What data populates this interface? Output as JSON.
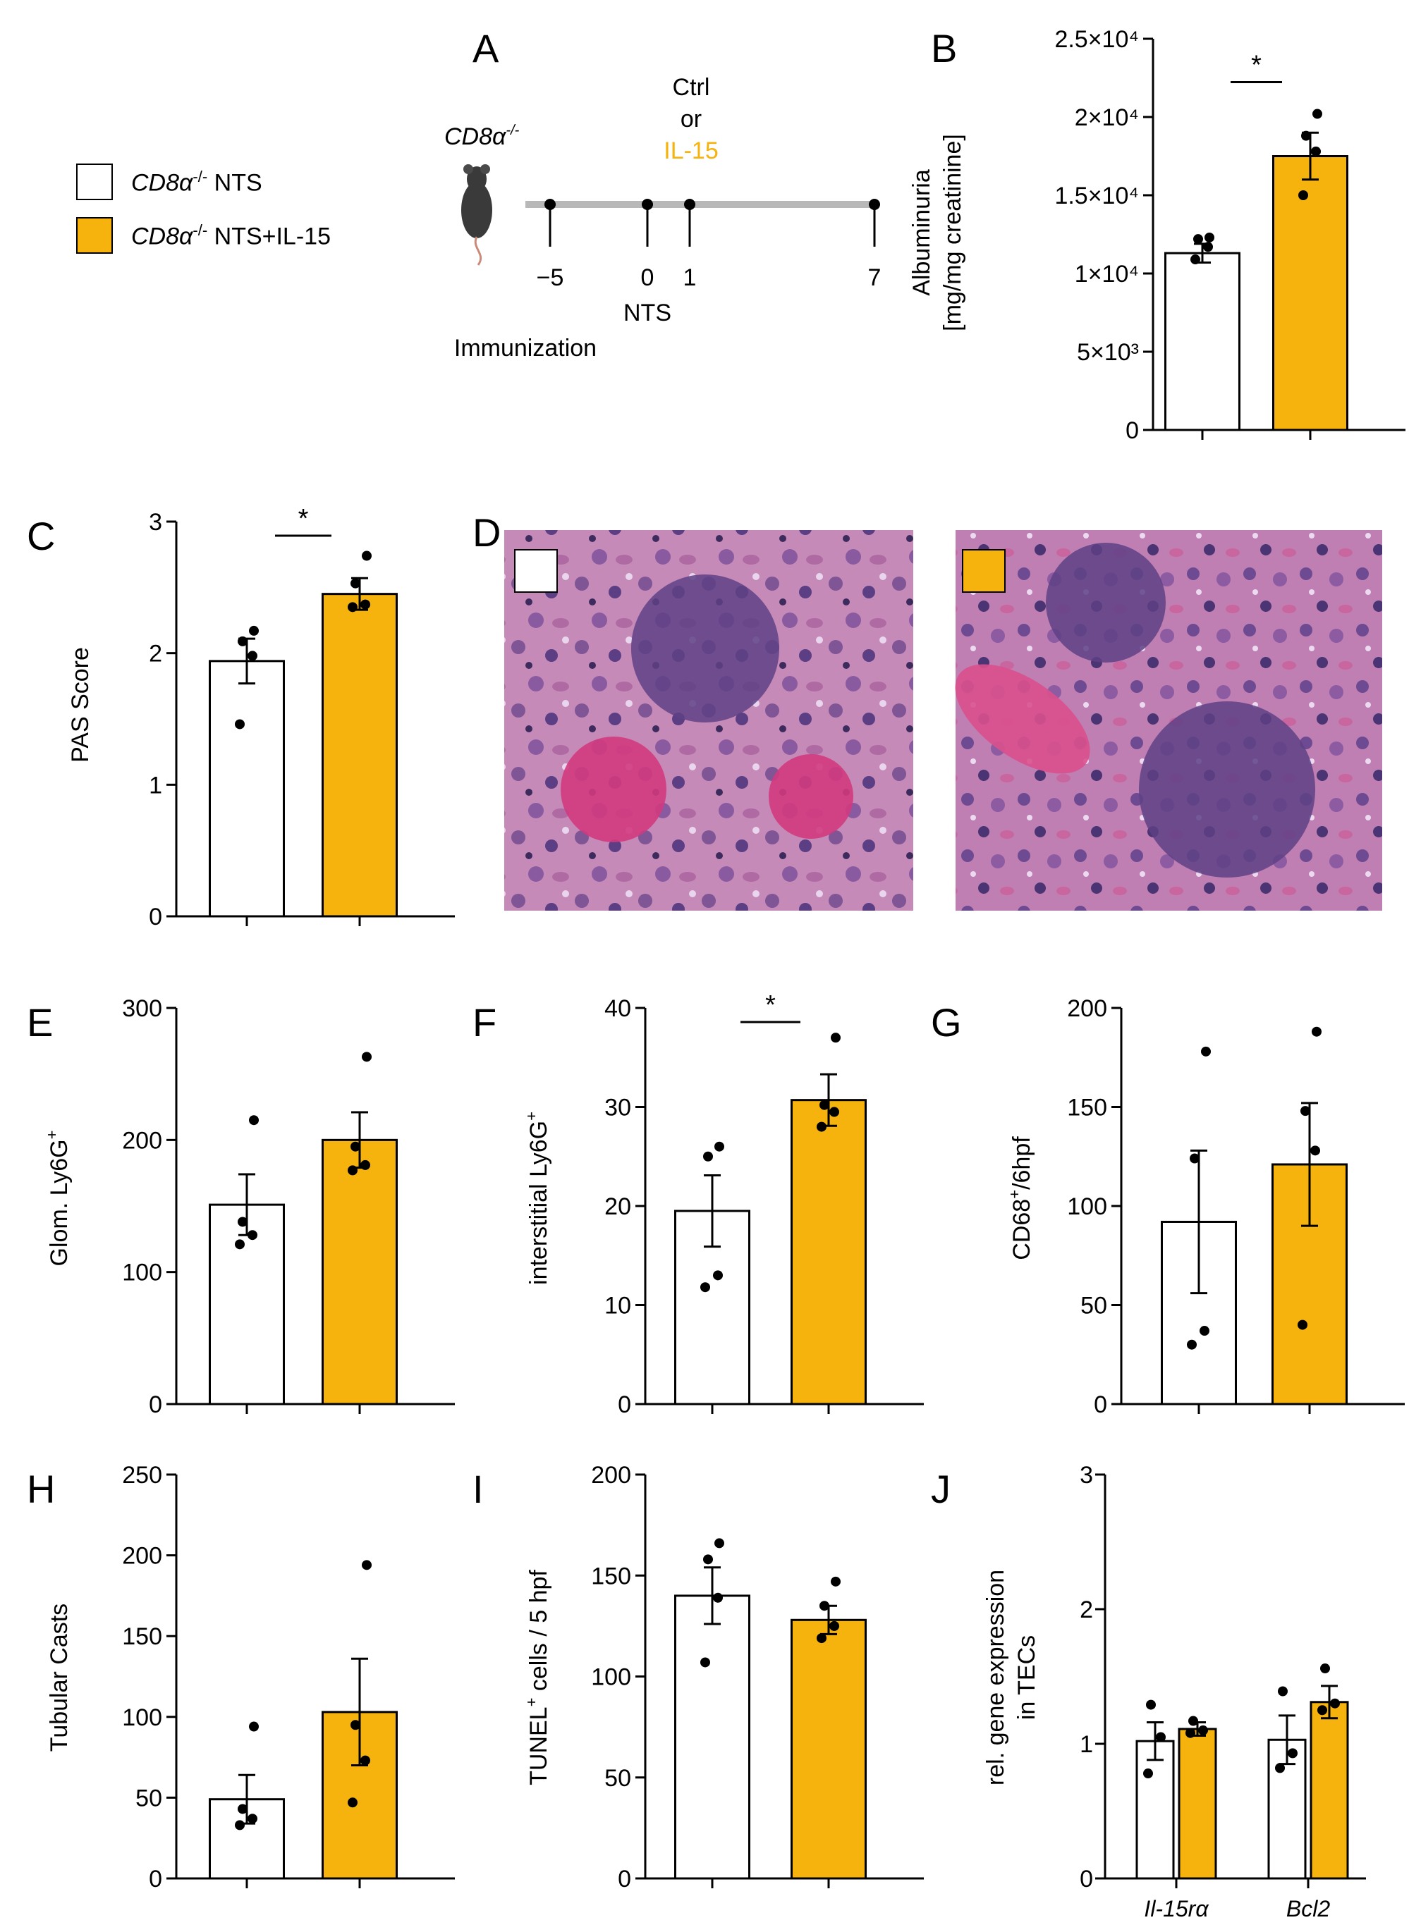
{
  "legend": {
    "items": [
      {
        "label_italic": "CD8α",
        "label_sup": "-/-",
        "label_rest": " NTS",
        "color": "#ffffff"
      },
      {
        "label_italic": "CD8α",
        "label_sup": "-/-",
        "label_rest": " NTS+IL-15",
        "color": "#f6b30d"
      }
    ]
  },
  "timeline": {
    "panel_letter": "A",
    "mouse_label": "CD8α",
    "mouse_label_sup": "-/-",
    "treatment_lines": [
      "Ctrl",
      "or",
      "IL-15"
    ],
    "treatment_highlight_color": "#f6b30d",
    "ticks": [
      "−5",
      "0",
      "1",
      "7"
    ],
    "under_labels": [
      "NTS",
      "Immunization"
    ]
  },
  "histology": {
    "panel_letter": "D",
    "images": [
      "ctrl-section",
      "il15-section"
    ]
  },
  "colors": {
    "ctrl": "#ffffff",
    "il15": "#f6b30d",
    "axis": "#000000"
  },
  "chart_data": [
    {
      "id": "B",
      "type": "bar",
      "panel_letter": "B",
      "categories": [
        "CD8α-/- NTS",
        "CD8α-/- NTS+IL-15"
      ],
      "values": [
        11300,
        17500
      ],
      "errors": [
        600,
        1500
      ],
      "points": [
        [
          10900,
          11700,
          12200,
          12300
        ],
        [
          15000,
          17800,
          18800,
          20200
        ]
      ],
      "ylabel_lines": [
        "Albuminuria",
        "[mg/mg creatinine]"
      ],
      "ylim": [
        0,
        25000
      ],
      "yticks": [
        "0",
        "5×10³",
        "1×10⁴",
        "1.5×10⁴",
        "2×10⁴",
        "2.5×10⁴"
      ],
      "significance": "*"
    },
    {
      "id": "C",
      "type": "bar",
      "panel_letter": "C",
      "categories": [
        "CD8α-/- NTS",
        "CD8α-/- NTS+IL-15"
      ],
      "values": [
        1.94,
        2.45
      ],
      "errors": [
        0.17,
        0.12
      ],
      "points": [
        [
          1.46,
          1.98,
          2.09,
          2.17
        ],
        [
          2.35,
          2.37,
          2.53,
          2.74
        ]
      ],
      "ylabel_lines": [
        "PAS Score"
      ],
      "ylim": [
        0,
        3
      ],
      "yticks": [
        "0",
        "1",
        "2",
        "3"
      ],
      "significance": "*"
    },
    {
      "id": "E",
      "type": "bar",
      "panel_letter": "E",
      "categories": [
        "CD8α-/- NTS",
        "CD8α-/- NTS+IL-15"
      ],
      "values": [
        151,
        200
      ],
      "errors": [
        23,
        21
      ],
      "points": [
        [
          121,
          128,
          138,
          215
        ],
        [
          177,
          181,
          195,
          263
        ]
      ],
      "ylabel_lines": [
        "Glom. Ly6G"
      ],
      "ylabel_sup": "+",
      "ylim": [
        0,
        300
      ],
      "yticks": [
        "0",
        "100",
        "200",
        "300"
      ],
      "significance": ""
    },
    {
      "id": "F",
      "type": "bar",
      "panel_letter": "F",
      "categories": [
        "CD8α-/- NTS",
        "CD8α-/- NTS+IL-15"
      ],
      "values": [
        19.5,
        30.7
      ],
      "errors": [
        3.6,
        2.6
      ],
      "points": [
        [
          11.8,
          13.0,
          25.0,
          26.0
        ],
        [
          28.0,
          29.5,
          30.2,
          37.0
        ]
      ],
      "ylabel_lines": [
        "interstitial Ly6G"
      ],
      "ylabel_sup": "+",
      "ylim": [
        0,
        40
      ],
      "yticks": [
        "0",
        "10",
        "20",
        "30",
        "40"
      ],
      "significance": "*"
    },
    {
      "id": "G",
      "type": "bar",
      "panel_letter": "G",
      "categories": [
        "CD8α-/- NTS",
        "CD8α-/- NTS+IL-15"
      ],
      "values": [
        92,
        121
      ],
      "errors": [
        36,
        31
      ],
      "points": [
        [
          30,
          37,
          124,
          178
        ],
        [
          40,
          128,
          148,
          188
        ]
      ],
      "ylabel_lines": [
        "CD68",
        "/6hpf"
      ],
      "ylabel_sup": "+",
      "ylim": [
        0,
        200
      ],
      "yticks": [
        "0",
        "50",
        "100",
        "150",
        "200"
      ],
      "significance": ""
    },
    {
      "id": "H",
      "type": "bar",
      "panel_letter": "H",
      "categories": [
        "CD8α-/- NTS",
        "CD8α-/- NTS+IL-15"
      ],
      "values": [
        49,
        103
      ],
      "errors": [
        15,
        33
      ],
      "points": [
        [
          33,
          37,
          43,
          94
        ],
        [
          47,
          73,
          95,
          194
        ]
      ],
      "ylabel_lines": [
        "Tubular Casts"
      ],
      "ylim": [
        0,
        250
      ],
      "yticks": [
        "0",
        "50",
        "100",
        "150",
        "200",
        "250"
      ],
      "significance": ""
    },
    {
      "id": "I",
      "type": "bar",
      "panel_letter": "I",
      "categories": [
        "CD8α-/- NTS",
        "CD8α-/- NTS+IL-15"
      ],
      "values": [
        140,
        128
      ],
      "errors": [
        14,
        7
      ],
      "points": [
        [
          107,
          139,
          158,
          166
        ],
        [
          119,
          125,
          135,
          147
        ]
      ],
      "ylabel_lines": [
        "TUNEL",
        " cells / 5 hpf"
      ],
      "ylabel_sup": "+",
      "ylim": [
        0,
        200
      ],
      "yticks": [
        "0",
        "50",
        "100",
        "150",
        "200"
      ],
      "significance": ""
    },
    {
      "id": "J",
      "type": "bar",
      "panel_letter": "J",
      "categories": [
        "Il-15rα",
        "Bcl2"
      ],
      "series": [
        {
          "values": [
            1.02,
            1.03
          ],
          "errors": [
            0.14,
            0.18
          ],
          "points": [
            [
              0.78,
              1.05,
              1.29
            ],
            [
              0.82,
              0.93,
              1.39
            ]
          ]
        },
        {
          "values": [
            1.11,
            1.31
          ],
          "errors": [
            0.05,
            0.12
          ],
          "points": [
            [
              1.08,
              1.1,
              1.17
            ],
            [
              1.25,
              1.3,
              1.56
            ]
          ]
        }
      ],
      "ylabel_lines": [
        "rel. gene expression",
        "in TECs"
      ],
      "ylim": [
        0,
        3
      ],
      "yticks": [
        "0",
        "1",
        "2",
        "3"
      ],
      "significance": ""
    }
  ]
}
